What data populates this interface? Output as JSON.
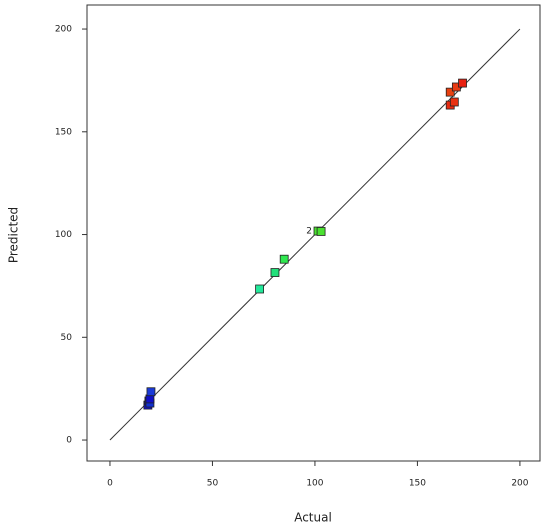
{
  "chart_data": {
    "type": "scatter",
    "x_label": "Actual",
    "y_label": "Predicted",
    "x": [
      18.5,
      19.0,
      19.5,
      19.5,
      20.0,
      73.0,
      80.5,
      85.0,
      101.5,
      103.0,
      166.0,
      168.0,
      166.0,
      169.0,
      172.0
    ],
    "y": [
      17.0,
      19.0,
      18.0,
      20.0,
      23.5,
      73.5,
      81.5,
      88.0,
      101.7,
      101.5,
      163.0,
      164.5,
      169.3,
      171.8,
      173.7
    ],
    "colors": [
      "#1010c8",
      "#1010c8",
      "#1030d0",
      "#1010c8",
      "#1a3ad8",
      "#22e89a",
      "#22e07a",
      "#30e850",
      "#4ae030",
      "#4ae030",
      "#e82a10",
      "#e83010",
      "#e84010",
      "#e83a12",
      "#e82010"
    ],
    "annotations": [
      {
        "text": "2",
        "x": 101.5,
        "y": 101.7
      }
    ],
    "xlim": [
      -11.2,
      209.8
    ],
    "ylim": [
      -10.2,
      211.7
    ],
    "xticks": [
      0,
      50,
      100,
      150,
      200
    ],
    "yticks": [
      0,
      50,
      100,
      150,
      200
    ],
    "diagonal_range": [
      0,
      200
    ],
    "line_color": "#333333"
  }
}
